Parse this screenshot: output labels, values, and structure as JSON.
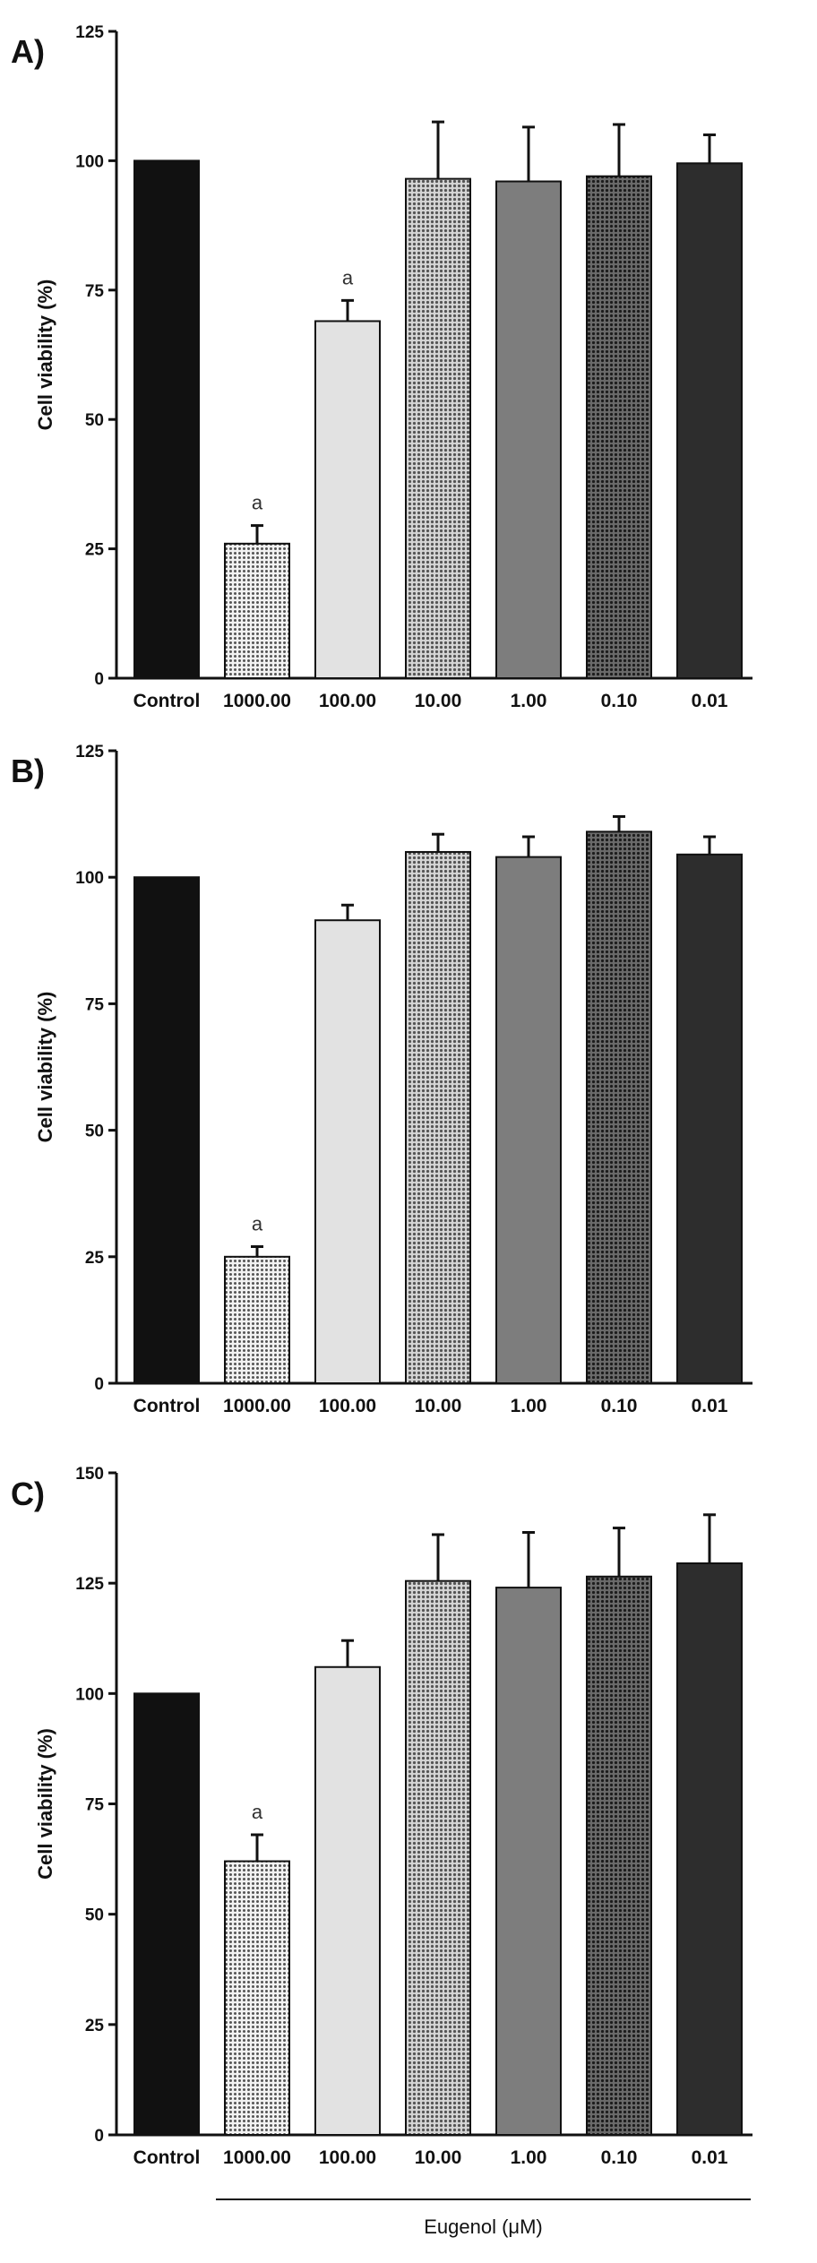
{
  "chart_data": [
    {
      "panel_label": "A)",
      "type": "bar",
      "ylabel": "Cell viability (%)",
      "ylim": [
        0,
        125
      ],
      "yticks": [
        0,
        25,
        50,
        75,
        100,
        125
      ],
      "categories": [
        "Control",
        "1000.00",
        "100.00",
        "10.00",
        "1.00",
        "0.10",
        "0.01"
      ],
      "values": [
        100,
        26,
        69,
        96.5,
        96,
        97,
        99.5
      ],
      "errors": [
        0,
        3.5,
        4,
        11,
        10.5,
        10,
        5.5
      ],
      "annotations": [
        "",
        "a",
        "a",
        "",
        "",
        "",
        ""
      ]
    },
    {
      "panel_label": "B)",
      "type": "bar",
      "ylabel": "Cell viability (%)",
      "ylim": [
        0,
        125
      ],
      "yticks": [
        0,
        25,
        50,
        75,
        100,
        125
      ],
      "categories": [
        "Control",
        "1000.00",
        "100.00",
        "10.00",
        "1.00",
        "0.10",
        "0.01"
      ],
      "values": [
        100,
        25,
        91.5,
        105,
        104,
        109,
        104.5
      ],
      "errors": [
        0,
        2,
        3,
        3.5,
        4,
        3,
        3.5
      ],
      "annotations": [
        "",
        "a",
        "",
        "",
        "",
        "",
        ""
      ]
    },
    {
      "panel_label": "C)",
      "type": "bar",
      "ylabel": "Cell viability (%)",
      "ylim": [
        0,
        150
      ],
      "yticks": [
        0,
        25,
        50,
        75,
        100,
        125,
        150
      ],
      "categories": [
        "Control",
        "1000.00",
        "100.00",
        "10.00",
        "1.00",
        "0.10",
        "0.01"
      ],
      "values": [
        100,
        62,
        106,
        125.5,
        124,
        126.5,
        129.5
      ],
      "errors": [
        0,
        6,
        6,
        10.5,
        12.5,
        11,
        11
      ],
      "annotations": [
        "",
        "a",
        "",
        "",
        "",
        "",
        ""
      ],
      "xlabel": "Eugenol (μM)"
    }
  ],
  "style": {
    "bar_colors": [
      "#111111",
      "#b9b9b9",
      "#e2e2e2",
      "#a8a8a8",
      "#7d7d7d",
      "#4f4f4f",
      "#2d2d2d"
    ],
    "bar_patterns": [
      "solid",
      "dots-light",
      "solid",
      "dots-medium",
      "solid",
      "dots-dark",
      "solid"
    ],
    "axis_color": "#111111"
  }
}
